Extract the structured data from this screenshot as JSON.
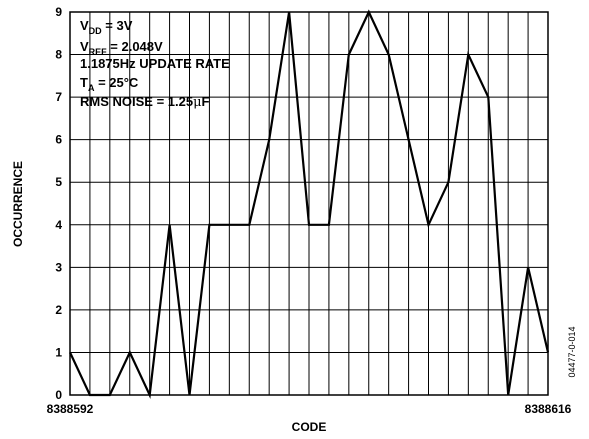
{
  "chart_data": {
    "type": "line",
    "xlabel": "CODE",
    "ylabel": "OCCURRENCE",
    "x_start_label": "8388592",
    "x_end_label": "8388616",
    "xlim": [
      8388592,
      8388616
    ],
    "ylim": [
      0,
      9
    ],
    "y_ticks": [
      "0",
      "1",
      "2",
      "3",
      "4",
      "5",
      "6",
      "7",
      "8",
      "9"
    ],
    "grid": true,
    "x": [
      8388592,
      8388593,
      8388594,
      8388595,
      8388596,
      8388597,
      8388598,
      8388599,
      8388600,
      8388601,
      8388602,
      8388603,
      8388604,
      8388605,
      8388606,
      8388607,
      8388608,
      8388609,
      8388610,
      8388611,
      8388612,
      8388613,
      8388614,
      8388615,
      8388616
    ],
    "values": [
      1,
      0,
      0,
      1,
      0,
      4,
      0,
      4,
      4,
      4,
      6,
      9,
      4,
      4,
      8,
      9,
      8,
      6,
      4,
      5,
      8,
      7,
      0,
      3,
      1
    ],
    "annotations": {
      "vdd": {
        "main": "V",
        "sub": "DD",
        "rest": " = 3V"
      },
      "vref": {
        "main": "V",
        "sub": "REF",
        "rest": " = 2.048V"
      },
      "rate": "1.1875Hz UPDATE RATE",
      "ta": {
        "main": "T",
        "sub": "A",
        "rest": " = 25°C"
      },
      "noise": {
        "main": "RMS NOISE = 1.25",
        "mu": "μ",
        "unit": "F"
      }
    },
    "figure_id": "04477-0-014"
  }
}
